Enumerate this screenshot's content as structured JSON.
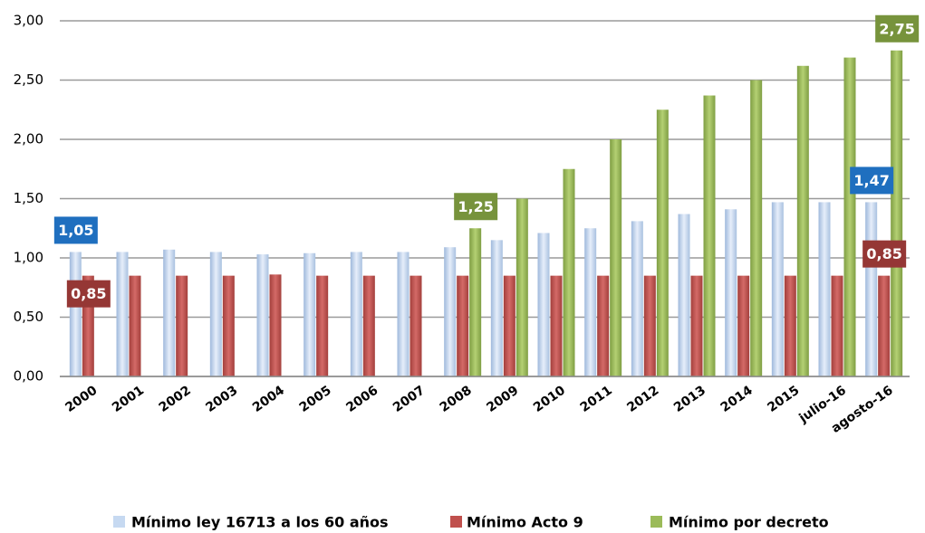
{
  "chart_data": {
    "type": "bar",
    "categories": [
      "2000",
      "2001",
      "2002",
      "2003",
      "2004",
      "2005",
      "2006",
      "2007",
      "2008",
      "2009",
      "2010",
      "2011",
      "2012",
      "2013",
      "2014",
      "2015",
      "julio-16",
      "agosto-16"
    ],
    "series": [
      {
        "name": "Mínimo ley 16713 a los 60 años",
        "color": "#c6d9f1",
        "values": [
          1.05,
          1.05,
          1.07,
          1.05,
          1.03,
          1.04,
          1.05,
          1.05,
          1.09,
          1.15,
          1.21,
          1.25,
          1.31,
          1.37,
          1.41,
          1.47,
          1.47,
          1.47
        ],
        "value_labels": [
          "1,05",
          null,
          null,
          null,
          null,
          null,
          null,
          null,
          null,
          null,
          null,
          null,
          null,
          null,
          null,
          null,
          null,
          "1,47"
        ],
        "label_color": "#1f6fbf"
      },
      {
        "name": "Mínimo Acto 9",
        "color": "#c0504d",
        "values": [
          0.85,
          0.85,
          0.85,
          0.85,
          0.86,
          0.85,
          0.85,
          0.85,
          0.85,
          0.85,
          0.85,
          0.85,
          0.85,
          0.85,
          0.85,
          0.85,
          0.85,
          0.85
        ],
        "value_labels": [
          "0,85",
          null,
          null,
          null,
          null,
          null,
          null,
          null,
          null,
          null,
          null,
          null,
          null,
          null,
          null,
          null,
          null,
          "0,85"
        ],
        "label_color": "#953735"
      },
      {
        "name": "Mínimo por decreto",
        "color": "#9bbb59",
        "values": [
          0,
          0,
          0,
          0,
          0,
          0,
          0,
          0,
          1.25,
          1.5,
          1.75,
          2.0,
          2.25,
          2.37,
          2.5,
          2.62,
          2.69,
          2.75
        ],
        "value_labels": [
          null,
          null,
          null,
          null,
          null,
          null,
          null,
          null,
          "1,25",
          null,
          null,
          null,
          null,
          null,
          null,
          null,
          null,
          "2,75"
        ],
        "label_color": "#77933c"
      }
    ],
    "ylim": [
      0,
      3
    ],
    "yticks": [
      {
        "value": 0,
        "label": "0,00"
      },
      {
        "value": 0.5,
        "label": "0,50"
      },
      {
        "value": 1,
        "label": "1,00"
      },
      {
        "value": 1.5,
        "label": "1,50"
      },
      {
        "value": 2,
        "label": "2,00"
      },
      {
        "value": 2.5,
        "label": "2,50"
      },
      {
        "value": 3,
        "label": "3,00"
      }
    ],
    "grid": true,
    "legend": "bottom"
  }
}
